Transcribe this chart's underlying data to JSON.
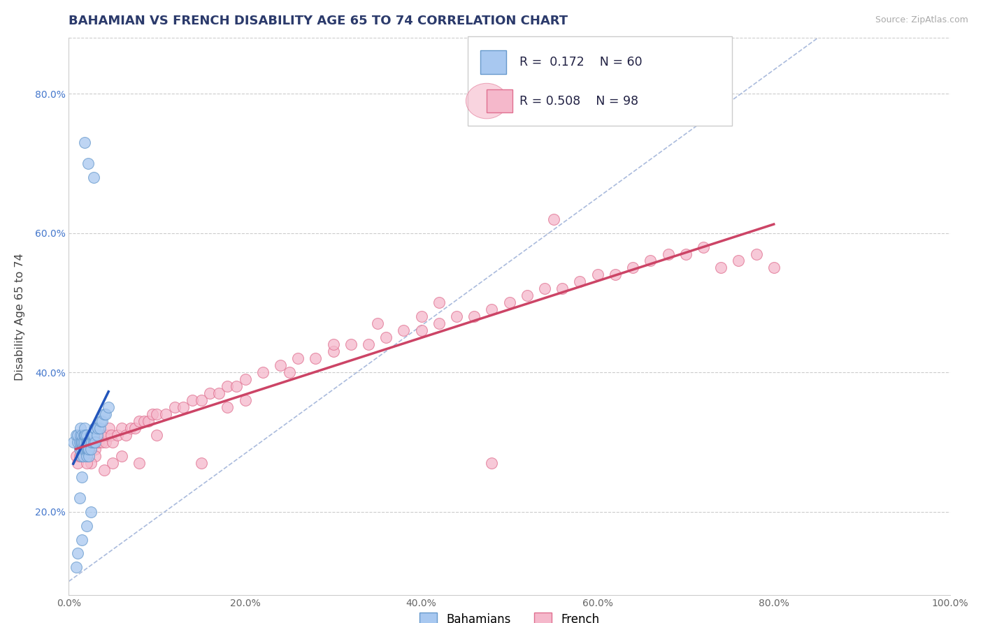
{
  "title": "BAHAMIAN VS FRENCH DISABILITY AGE 65 TO 74 CORRELATION CHART",
  "source": "Source: ZipAtlas.com",
  "ylabel": "Disability Age 65 to 74",
  "xlim": [
    0.0,
    1.0
  ],
  "ylim": [
    0.08,
    0.88
  ],
  "xticks": [
    0.0,
    0.2,
    0.4,
    0.6,
    0.8,
    1.0
  ],
  "yticks": [
    0.2,
    0.4,
    0.6,
    0.8
  ],
  "bahamian_color": "#a8c8f0",
  "french_color": "#f5b8cb",
  "bahamian_edge": "#6699cc",
  "french_edge": "#e07090",
  "reg_line_blue": "#2255bb",
  "reg_line_pink": "#cc4466",
  "diag_color": "#aabbdd",
  "title_color": "#2b3a6b",
  "source_color": "#aaaaaa",
  "background": "#ffffff",
  "grid_color": "#cccccc",
  "bahamian_R": 0.172,
  "bahamian_N": 60,
  "french_R": 0.508,
  "french_N": 98,
  "bahamian_x": [
    0.005,
    0.008,
    0.01,
    0.01,
    0.012,
    0.012,
    0.013,
    0.013,
    0.014,
    0.014,
    0.015,
    0.015,
    0.015,
    0.016,
    0.016,
    0.017,
    0.017,
    0.018,
    0.018,
    0.018,
    0.019,
    0.019,
    0.02,
    0.02,
    0.02,
    0.02,
    0.021,
    0.021,
    0.022,
    0.022,
    0.023,
    0.023,
    0.024,
    0.025,
    0.025,
    0.026,
    0.027,
    0.028,
    0.028,
    0.029,
    0.03,
    0.03,
    0.032,
    0.033,
    0.035,
    0.036,
    0.038,
    0.04,
    0.042,
    0.045,
    0.028,
    0.022,
    0.018,
    0.015,
    0.012,
    0.025,
    0.02,
    0.015,
    0.01,
    0.008
  ],
  "bahamian_y": [
    0.3,
    0.31,
    0.3,
    0.31,
    0.29,
    0.3,
    0.31,
    0.32,
    0.28,
    0.3,
    0.29,
    0.3,
    0.31,
    0.28,
    0.3,
    0.29,
    0.31,
    0.3,
    0.31,
    0.32,
    0.29,
    0.31,
    0.28,
    0.29,
    0.3,
    0.31,
    0.29,
    0.3,
    0.29,
    0.3,
    0.28,
    0.29,
    0.3,
    0.29,
    0.31,
    0.3,
    0.31,
    0.3,
    0.31,
    0.32,
    0.3,
    0.32,
    0.31,
    0.32,
    0.32,
    0.33,
    0.33,
    0.34,
    0.34,
    0.35,
    0.68,
    0.7,
    0.73,
    0.25,
    0.22,
    0.2,
    0.18,
    0.16,
    0.14,
    0.12
  ],
  "french_x": [
    0.008,
    0.01,
    0.012,
    0.013,
    0.014,
    0.015,
    0.016,
    0.017,
    0.018,
    0.019,
    0.02,
    0.021,
    0.022,
    0.023,
    0.024,
    0.025,
    0.026,
    0.027,
    0.028,
    0.03,
    0.032,
    0.034,
    0.036,
    0.038,
    0.04,
    0.042,
    0.044,
    0.046,
    0.048,
    0.05,
    0.055,
    0.06,
    0.065,
    0.07,
    0.075,
    0.08,
    0.085,
    0.09,
    0.095,
    0.1,
    0.11,
    0.12,
    0.13,
    0.14,
    0.15,
    0.16,
    0.17,
    0.18,
    0.19,
    0.2,
    0.22,
    0.24,
    0.26,
    0.28,
    0.3,
    0.32,
    0.34,
    0.36,
    0.38,
    0.4,
    0.42,
    0.44,
    0.46,
    0.48,
    0.5,
    0.52,
    0.54,
    0.56,
    0.58,
    0.6,
    0.62,
    0.64,
    0.66,
    0.68,
    0.7,
    0.72,
    0.74,
    0.76,
    0.78,
    0.8,
    0.35,
    0.25,
    0.18,
    0.42,
    0.15,
    0.08,
    0.06,
    0.05,
    0.04,
    0.03,
    0.025,
    0.02,
    0.55,
    0.48,
    0.1,
    0.2,
    0.3,
    0.4
  ],
  "french_y": [
    0.28,
    0.27,
    0.28,
    0.29,
    0.28,
    0.29,
    0.28,
    0.29,
    0.3,
    0.29,
    0.28,
    0.29,
    0.3,
    0.29,
    0.3,
    0.29,
    0.3,
    0.31,
    0.3,
    0.29,
    0.3,
    0.3,
    0.31,
    0.3,
    0.31,
    0.3,
    0.31,
    0.32,
    0.31,
    0.3,
    0.31,
    0.32,
    0.31,
    0.32,
    0.32,
    0.33,
    0.33,
    0.33,
    0.34,
    0.34,
    0.34,
    0.35,
    0.35,
    0.36,
    0.36,
    0.37,
    0.37,
    0.38,
    0.38,
    0.39,
    0.4,
    0.41,
    0.42,
    0.42,
    0.43,
    0.44,
    0.44,
    0.45,
    0.46,
    0.46,
    0.47,
    0.48,
    0.48,
    0.49,
    0.5,
    0.51,
    0.52,
    0.52,
    0.53,
    0.54,
    0.54,
    0.55,
    0.56,
    0.57,
    0.57,
    0.58,
    0.55,
    0.56,
    0.57,
    0.55,
    0.47,
    0.4,
    0.35,
    0.5,
    0.27,
    0.27,
    0.28,
    0.27,
    0.26,
    0.28,
    0.27,
    0.27,
    0.62,
    0.27,
    0.31,
    0.36,
    0.44,
    0.48
  ]
}
